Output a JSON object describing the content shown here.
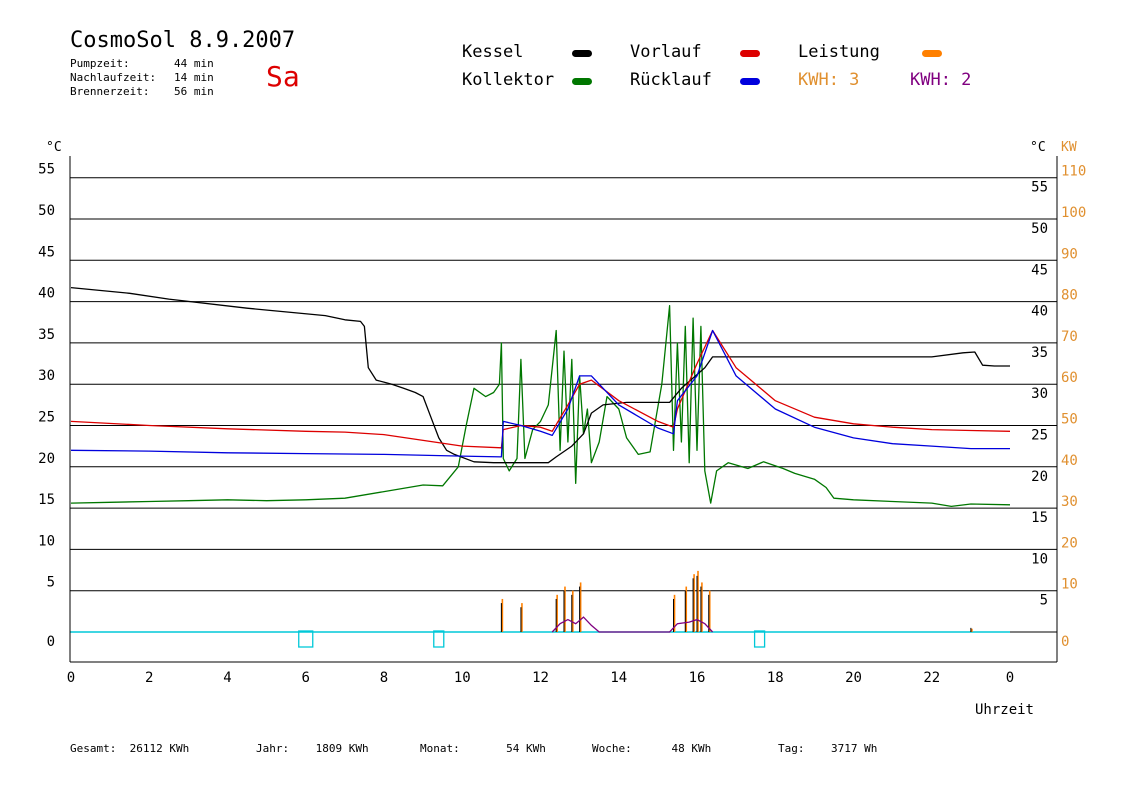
{
  "header": {
    "title": "CosmoSol 8.9.2007",
    "day": "Sa",
    "stats": [
      {
        "label": "Pumpzeit:",
        "value": "44 min"
      },
      {
        "label": "Nachlaufzeit:",
        "value": "14 min"
      },
      {
        "label": "Brennerzeit:",
        "value": "56 min"
      }
    ]
  },
  "legend": {
    "kessel": "Kessel",
    "vorlauf": "Vorlauf",
    "leistung": "Leistung",
    "kollektor": "Kollektor",
    "ruecklauf": "Rücklauf",
    "kwh_orange": "KWH: 3",
    "kwh_purple": "KWH: 2"
  },
  "colors": {
    "kessel": "#000000",
    "vorlauf": "#dd0000",
    "leistung": "#ff8000",
    "kollektor": "#007700",
    "ruecklauf": "#0000dd",
    "kwh_purple": "#800080",
    "baseline": "#00c8d8",
    "kw_axis": "#e09030"
  },
  "footer": [
    {
      "label": "Gesamt:",
      "value": "26112 KWh"
    },
    {
      "label": "Jahr:",
      "value": "1809 KWh"
    },
    {
      "label": "Monat:",
      "value": "54 KWh"
    },
    {
      "label": "Woche:",
      "value": "48 KWh"
    },
    {
      "label": "Tag:",
      "value": "3717 Wh"
    }
  ],
  "chart_data": {
    "type": "line",
    "xlabel": "Uhrzeit",
    "ylabel_left": "°C",
    "ylabel_right_1": "°C",
    "ylabel_right_2": "KW",
    "xlim": [
      0,
      24
    ],
    "ylim": [
      -3.6,
      57
    ],
    "x_ticks": [
      "0",
      "2",
      "4",
      "6",
      "8",
      "10",
      "12",
      "14",
      "16",
      "18",
      "20",
      "22",
      "0"
    ],
    "y_ticks_left": [
      "0",
      "5",
      "10",
      "15",
      "20",
      "25",
      "30",
      "35",
      "40",
      "45",
      "50",
      "55"
    ],
    "y_ticks_right": [
      "5",
      "10",
      "15",
      "20",
      "25",
      "30",
      "35",
      "40",
      "45",
      "50",
      "55"
    ],
    "y_ticks_kw": [
      "0",
      "10",
      "20",
      "30",
      "40",
      "50",
      "60",
      "70",
      "80",
      "90",
      "100",
      "110"
    ],
    "grid": true,
    "series": [
      {
        "name": "Kessel",
        "color": "#000000",
        "points": [
          [
            0,
            41.7
          ],
          [
            1.5,
            41
          ],
          [
            2.5,
            40.3
          ],
          [
            4.5,
            39.2
          ],
          [
            6.5,
            38.3
          ],
          [
            7,
            37.8
          ],
          [
            7.4,
            37.6
          ],
          [
            7.5,
            37
          ],
          [
            7.6,
            32
          ],
          [
            7.8,
            30.5
          ],
          [
            8.2,
            30
          ],
          [
            8.5,
            29.5
          ],
          [
            8.8,
            29
          ],
          [
            9,
            28.5
          ],
          [
            9.2,
            26
          ],
          [
            9.4,
            23.5
          ],
          [
            9.6,
            22
          ],
          [
            9.8,
            21.5
          ],
          [
            10.3,
            20.6
          ],
          [
            10.8,
            20.5
          ],
          [
            12.2,
            20.5
          ],
          [
            12.4,
            21.2
          ],
          [
            12.8,
            22.5
          ],
          [
            13.1,
            24
          ],
          [
            13.3,
            26.5
          ],
          [
            13.6,
            27.5
          ],
          [
            14.2,
            27.8
          ],
          [
            15.3,
            27.8
          ],
          [
            15.6,
            29.5
          ],
          [
            16.2,
            32
          ],
          [
            16.4,
            33.3
          ],
          [
            18,
            33.3
          ],
          [
            20,
            33.3
          ],
          [
            22,
            33.3
          ],
          [
            22.8,
            33.8
          ],
          [
            23.1,
            33.9
          ],
          [
            23.3,
            32.3
          ],
          [
            23.6,
            32.2
          ],
          [
            24,
            32.2
          ]
        ]
      },
      {
        "name": "Vorlauf",
        "color": "#dd0000",
        "points": [
          [
            0,
            25.5
          ],
          [
            2,
            25
          ],
          [
            4,
            24.6
          ],
          [
            6,
            24.3
          ],
          [
            7,
            24.2
          ],
          [
            8,
            23.9
          ],
          [
            9,
            23.2
          ],
          [
            10,
            22.5
          ],
          [
            11,
            22.3
          ],
          [
            11.05,
            24.5
          ],
          [
            11.5,
            25
          ],
          [
            12,
            24.8
          ],
          [
            12.3,
            24.3
          ],
          [
            12.7,
            27.5
          ],
          [
            13,
            30
          ],
          [
            13.3,
            30.5
          ],
          [
            14,
            28
          ],
          [
            15,
            25.5
          ],
          [
            15.4,
            24.8
          ],
          [
            15.5,
            27
          ],
          [
            16,
            32.5
          ],
          [
            16.4,
            36.5
          ],
          [
            17,
            32
          ],
          [
            18,
            28
          ],
          [
            19,
            26
          ],
          [
            20,
            25.2
          ],
          [
            21,
            24.8
          ],
          [
            22,
            24.5
          ],
          [
            23,
            24.4
          ],
          [
            24,
            24.3
          ]
        ]
      },
      {
        "name": "Rücklauf",
        "color": "#0000dd",
        "points": [
          [
            0,
            22
          ],
          [
            2,
            21.9
          ],
          [
            4,
            21.7
          ],
          [
            6,
            21.6
          ],
          [
            8,
            21.5
          ],
          [
            10,
            21.3
          ],
          [
            11,
            21.2
          ],
          [
            11.05,
            25.5
          ],
          [
            11.5,
            25
          ],
          [
            12,
            24.3
          ],
          [
            12.3,
            23.8
          ],
          [
            12.7,
            27
          ],
          [
            13,
            31
          ],
          [
            13.3,
            31
          ],
          [
            14,
            27.5
          ],
          [
            15,
            24.7
          ],
          [
            15.4,
            24
          ],
          [
            15.5,
            28
          ],
          [
            16,
            31
          ],
          [
            16.4,
            36.5
          ],
          [
            17,
            31
          ],
          [
            18,
            27
          ],
          [
            19,
            24.8
          ],
          [
            20,
            23.5
          ],
          [
            21,
            22.8
          ],
          [
            22,
            22.5
          ],
          [
            23,
            22.2
          ],
          [
            24,
            22.2
          ]
        ]
      },
      {
        "name": "Kollektor",
        "color": "#007700",
        "points": [
          [
            0,
            15.6
          ],
          [
            1,
            15.7
          ],
          [
            2,
            15.8
          ],
          [
            3,
            15.9
          ],
          [
            4,
            16
          ],
          [
            5,
            15.9
          ],
          [
            6,
            16
          ],
          [
            7,
            16.2
          ],
          [
            8,
            17
          ],
          [
            9,
            17.8
          ],
          [
            9.5,
            17.7
          ],
          [
            9.9,
            20
          ],
          [
            10.1,
            25
          ],
          [
            10.3,
            29.5
          ],
          [
            10.6,
            28.5
          ],
          [
            10.8,
            29
          ],
          [
            10.95,
            30
          ],
          [
            11,
            35
          ],
          [
            11.05,
            21
          ],
          [
            11.2,
            19.5
          ],
          [
            11.4,
            21
          ],
          [
            11.5,
            33
          ],
          [
            11.6,
            21
          ],
          [
            11.8,
            24.5
          ],
          [
            12.0,
            25.5
          ],
          [
            12.2,
            27.5
          ],
          [
            12.4,
            36.5
          ],
          [
            12.5,
            22
          ],
          [
            12.6,
            34
          ],
          [
            12.7,
            23
          ],
          [
            12.8,
            33
          ],
          [
            12.9,
            18
          ],
          [
            13.0,
            31
          ],
          [
            13.1,
            24
          ],
          [
            13.2,
            27
          ],
          [
            13.3,
            20.5
          ],
          [
            13.5,
            23
          ],
          [
            13.7,
            28.5
          ],
          [
            14.0,
            27
          ],
          [
            14.2,
            23.5
          ],
          [
            14.5,
            21.5
          ],
          [
            14.8,
            21.8
          ],
          [
            15.1,
            30
          ],
          [
            15.3,
            39.5
          ],
          [
            15.4,
            22
          ],
          [
            15.5,
            35
          ],
          [
            15.6,
            23
          ],
          [
            15.7,
            37
          ],
          [
            15.8,
            20.5
          ],
          [
            15.9,
            38
          ],
          [
            16.0,
            22
          ],
          [
            16.1,
            37
          ],
          [
            16.2,
            19.5
          ],
          [
            16.35,
            15.6
          ],
          [
            16.5,
            19.5
          ],
          [
            16.8,
            20.5
          ],
          [
            17.3,
            19.8
          ],
          [
            17.7,
            20.6
          ],
          [
            18.2,
            19.8
          ],
          [
            18.5,
            19.2
          ],
          [
            19,
            18.5
          ],
          [
            19.3,
            17.5
          ],
          [
            19.5,
            16.2
          ],
          [
            20,
            16
          ],
          [
            21,
            15.8
          ],
          [
            22,
            15.6
          ],
          [
            22.5,
            15.2
          ],
          [
            23,
            15.5
          ],
          [
            24,
            15.4
          ]
        ]
      }
    ],
    "power_spikes": [
      {
        "x": 11.0,
        "kessel": 3.5,
        "leistung": 4.0
      },
      {
        "x": 11.5,
        "kessel": 3.0,
        "leistung": 3.5
      },
      {
        "x": 12.4,
        "kessel": 4.0,
        "leistung": 4.5
      },
      {
        "x": 12.6,
        "kessel": 5.0,
        "leistung": 5.5
      },
      {
        "x": 12.8,
        "kessel": 4.5,
        "leistung": 5.0
      },
      {
        "x": 13.0,
        "kessel": 5.5,
        "leistung": 6.0
      },
      {
        "x": 15.4,
        "kessel": 4.0,
        "leistung": 4.5
      },
      {
        "x": 15.7,
        "kessel": 5.0,
        "leistung": 5.5
      },
      {
        "x": 15.9,
        "kessel": 6.5,
        "leistung": 7.0
      },
      {
        "x": 16.0,
        "kessel": 6.8,
        "leistung": 7.4
      },
      {
        "x": 16.1,
        "kessel": 5.5,
        "leistung": 6.0
      },
      {
        "x": 16.3,
        "kessel": 4.5,
        "leistung": 5.0
      },
      {
        "x": 23.0,
        "kessel": 0.5,
        "leistung": 0.4
      }
    ],
    "kwh_curve": [
      [
        12.3,
        0
      ],
      [
        12.5,
        1
      ],
      [
        12.7,
        1.5
      ],
      [
        12.9,
        1
      ],
      [
        13.1,
        1.8
      ],
      [
        13.3,
        0.8
      ],
      [
        13.5,
        0
      ],
      [
        15.3,
        0
      ],
      [
        15.5,
        1
      ],
      [
        15.8,
        1.2
      ],
      [
        16.0,
        1.5
      ],
      [
        16.2,
        1
      ],
      [
        16.4,
        0
      ]
    ],
    "pump_markers": [
      6.0,
      9.4,
      17.6
    ]
  }
}
